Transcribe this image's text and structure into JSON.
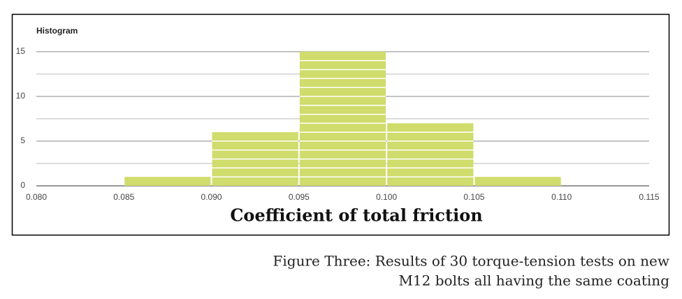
{
  "chart_data": {
    "type": "histogram",
    "title": "Histogram",
    "x_label": "Coefficient of total friction",
    "bins": [
      0.085,
      0.09,
      0.095,
      0.1,
      0.105,
      0.11
    ],
    "counts": [
      1,
      6,
      15,
      7,
      1
    ],
    "color": "#d0dc6c",
    "xlim": [
      0.08,
      0.115
    ],
    "xticks": [
      {
        "value": 0.08,
        "label": "0.080"
      },
      0.085,
      {
        "value": 0.09,
        "label": "0.090"
      },
      0.095,
      {
        "value": 0.1,
        "label": "0.100"
      },
      0.105,
      {
        "value": 0.11,
        "label": "0.110"
      },
      0.115
    ],
    "ylim": [
      0,
      15
    ],
    "yticks": [
      0,
      5,
      10,
      15
    ],
    "minor_gridlines": [
      2.5,
      7.5,
      12.5
    ],
    "grid": true
  },
  "caption": [
    "Figure Three: Results of 30 torque-tension tests on new",
    "M12 bolts all having the same coating"
  ]
}
